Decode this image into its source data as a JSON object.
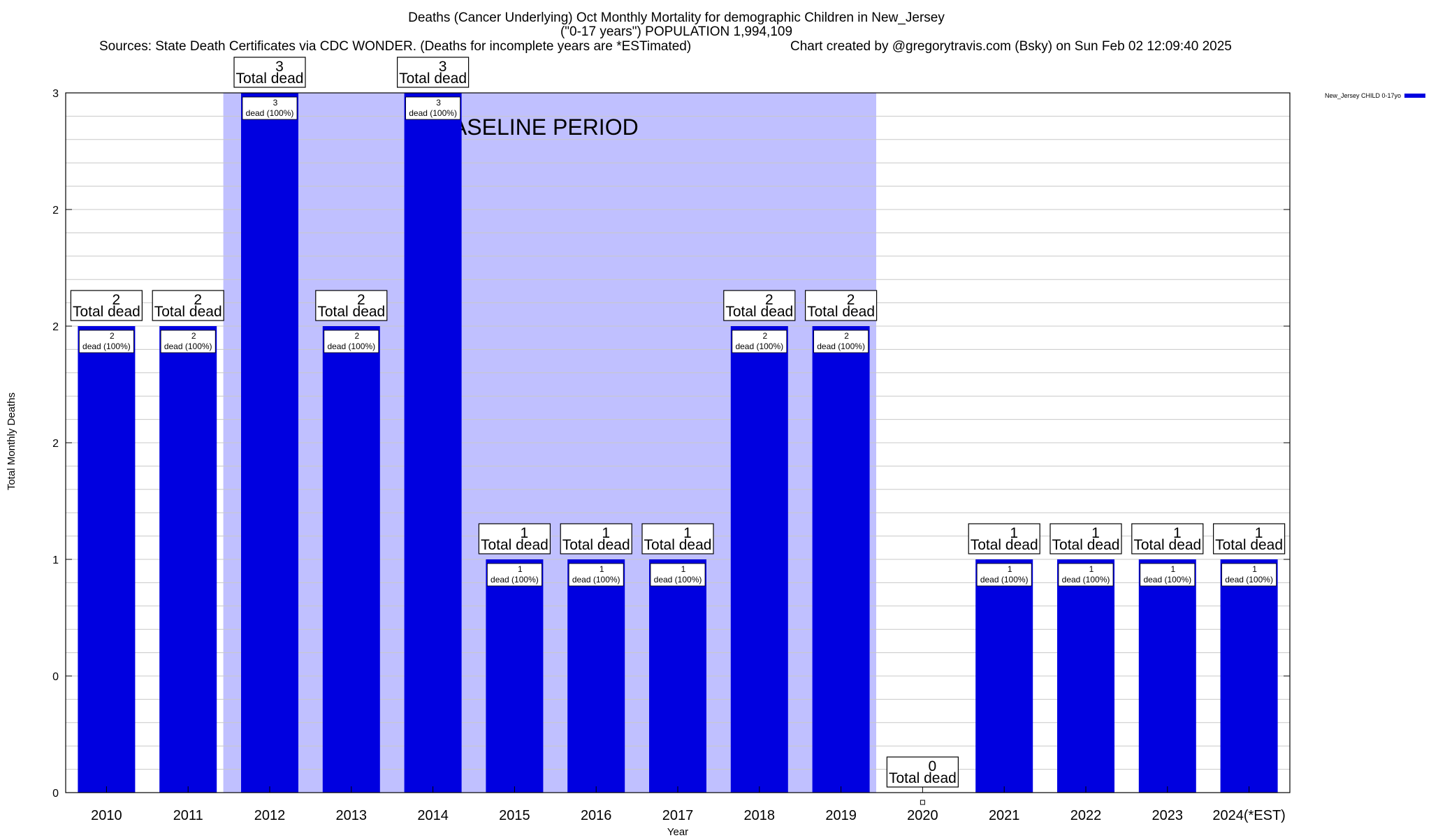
{
  "header": {
    "title_line1": "Deaths (Cancer Underlying) Oct Monthly Mortality for demographic Children in New_Jersey",
    "title_line2": "(\"0-17 years\") POPULATION 1,994,109",
    "sources": "Sources: State Death Certificates via CDC WONDER. (Deaths for incomplete years are *ESTimated)",
    "credit": "Chart created by @gregorytravis.com (Bsky) on Sun Feb 02 12:09:40 2025"
  },
  "chart_data": {
    "type": "bar",
    "xlabel": "Year",
    "ylabel": "Total Monthly Deaths",
    "ylim": [
      0,
      3
    ],
    "y_tick_values": [
      0,
      0.5,
      1,
      1.5,
      2,
      2.5,
      3
    ],
    "y_tick_labels": [
      "0",
      "0",
      "1",
      "2",
      "2",
      "2",
      "3"
    ],
    "minor_gridline_step": 0.1,
    "grid": true,
    "categories": [
      "2010",
      "2011",
      "2012",
      "2013",
      "2014",
      "2015",
      "2016",
      "2017",
      "2018",
      "2019",
      "2020",
      "2021",
      "2022",
      "2023",
      "2024(*EST)"
    ],
    "series": [
      {
        "name": "New_Jersey CHILD 0-17yo",
        "color": "#0000e0",
        "values": [
          2,
          2,
          3,
          2,
          3,
          1,
          1,
          1,
          2,
          2,
          0,
          1,
          1,
          1,
          1
        ]
      }
    ],
    "total_labels": {
      "values": [
        "2",
        "2",
        "3",
        "2",
        "3",
        "1",
        "1",
        "1",
        "2",
        "2",
        "0",
        "1",
        "1",
        "1",
        "1"
      ],
      "suffix": "Total dead"
    },
    "bar_labels": {
      "values": [
        "2",
        "2",
        "3",
        "2",
        "3",
        "1",
        "1",
        "1",
        "2",
        "2",
        "",
        "1",
        "1",
        "1",
        "1"
      ],
      "suffix": "dead (100%)"
    },
    "baseline_period": {
      "label": "BASELINE PERIOD",
      "from": "2012",
      "to": "2019",
      "color": "#c0c0ff"
    },
    "legend": {
      "placement": "top-right"
    }
  }
}
